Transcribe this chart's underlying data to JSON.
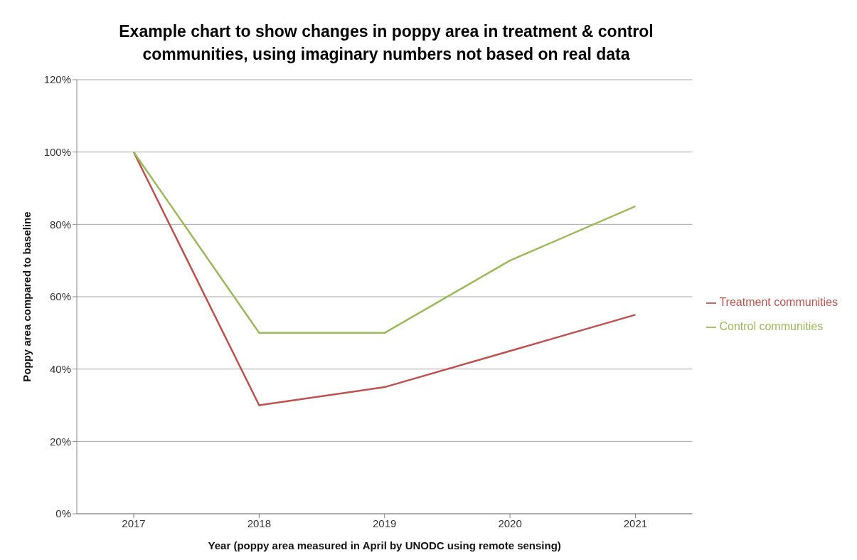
{
  "chart_data": {
    "type": "line",
    "title": "Example chart to show changes in poppy area in treatment & control communities, using imaginary numbers not based on real data",
    "xlabel": "Year (poppy area measured in April by UNODC using remote sensing)",
    "ylabel": "Poppy area compared to baseline",
    "categories": [
      "2017",
      "2018",
      "2019",
      "2020",
      "2021"
    ],
    "series": [
      {
        "name": "Treatment communities",
        "color": "#c0504d",
        "values": [
          100,
          30,
          35,
          45,
          55
        ]
      },
      {
        "name": "Control communities",
        "color": "#9bbb59",
        "values": [
          100,
          50,
          50,
          70,
          85
        ]
      }
    ],
    "ylim": [
      0,
      120
    ],
    "yticks": [
      {
        "value": 0,
        "label": "0%"
      },
      {
        "value": 20,
        "label": "20%"
      },
      {
        "value": 40,
        "label": "40%"
      },
      {
        "value": 60,
        "label": "60%"
      },
      {
        "value": 80,
        "label": "80%"
      },
      {
        "value": 100,
        "label": "100%"
      },
      {
        "value": 120,
        "label": "120%"
      }
    ],
    "grid": "y",
    "legend": "right",
    "marker": "none",
    "line_style": "solid"
  }
}
